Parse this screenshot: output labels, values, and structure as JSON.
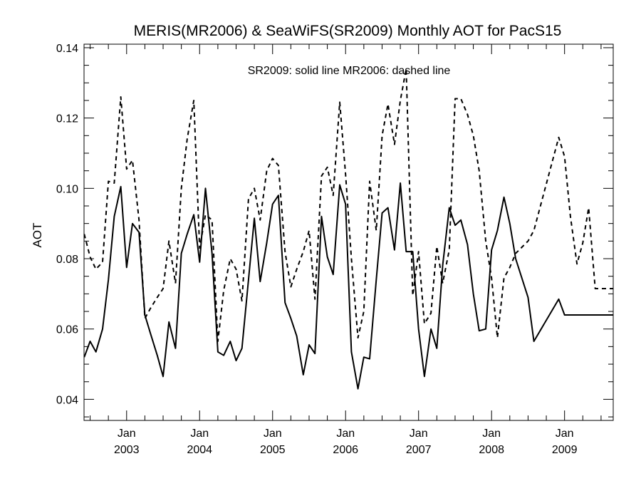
{
  "chart_data": {
    "type": "line",
    "title": "MERIS(MR2006) & SeaWiFS(SR2009) Monthly AOT for PacS15",
    "annotation": "SR2009: solid line   MR2006: dashed line",
    "xlabel": "",
    "ylabel": "AOT",
    "x_units": "decimal year",
    "xlim": [
      2002.4167,
      2009.6667
    ],
    "ylim": [
      0.034,
      0.141
    ],
    "x_ticks": [
      {
        "value": 2003.0,
        "line1": "Jan",
        "line2": "2003"
      },
      {
        "value": 2004.0,
        "line1": "Jan",
        "line2": "2004"
      },
      {
        "value": 2005.0,
        "line1": "Jan",
        "line2": "2005"
      },
      {
        "value": 2006.0,
        "line1": "Jan",
        "line2": "2006"
      },
      {
        "value": 2007.0,
        "line1": "Jan",
        "line2": "2007"
      },
      {
        "value": 2008.0,
        "line1": "Jan",
        "line2": "2008"
      },
      {
        "value": 2009.0,
        "line1": "Jan",
        "line2": "2009"
      }
    ],
    "y_ticks": [
      0.04,
      0.06,
      0.08,
      0.1,
      0.12,
      0.14
    ],
    "y_tick_labels": [
      "0.04",
      "0.06",
      "0.08",
      "0.10",
      "0.12",
      "0.14"
    ],
    "grid": false,
    "series": [
      {
        "style": "solid",
        "color": "#000000",
        "x": [
          2002.42,
          2002.5,
          2002.58,
          2002.67,
          2002.75,
          2002.83,
          2002.92,
          2003.0,
          2003.08,
          2003.17,
          2003.25,
          2003.33,
          2003.42,
          2003.5,
          2003.58,
          2003.67,
          2003.75,
          2003.83,
          2003.92,
          2004.0,
          2004.08,
          2004.17,
          2004.25,
          2004.33,
          2004.42,
          2004.5,
          2004.58,
          2004.67,
          2004.75,
          2004.83,
          2004.92,
          2005.0,
          2005.08,
          2005.17,
          2005.25,
          2005.33,
          2005.42,
          2005.5,
          2005.58,
          2005.67,
          2005.75,
          2005.83,
          2005.92,
          2006.0,
          2006.08,
          2006.17,
          2006.25,
          2006.33,
          2006.42,
          2006.5,
          2006.58,
          2006.67,
          2006.75,
          2006.83,
          2006.92,
          2007.0,
          2007.08,
          2007.17,
          2007.25,
          2007.33,
          2007.42,
          2007.5,
          2007.58,
          2007.67,
          2007.75,
          2007.83,
          2007.92,
          2008.0,
          2008.08,
          2008.17,
          2008.25,
          2008.33,
          2008.5,
          2008.58,
          2008.92,
          2009.0,
          2009.08,
          2009.17,
          2009.25,
          2009.33,
          2009.42,
          2009.5,
          2009.58,
          2009.67
        ],
        "y": [
          0.052,
          0.0565,
          0.0535,
          0.06,
          0.074,
          0.092,
          0.1005,
          0.0775,
          0.09,
          0.0875,
          0.064,
          0.0585,
          0.0525,
          0.0465,
          0.062,
          0.0545,
          0.0815,
          0.087,
          0.0925,
          0.079,
          0.1,
          0.0815,
          0.0535,
          0.0525,
          0.0565,
          0.051,
          0.0545,
          0.074,
          0.0915,
          0.0735,
          0.0845,
          0.0955,
          0.098,
          0.0675,
          0.063,
          0.058,
          0.047,
          0.0555,
          0.053,
          0.092,
          0.0805,
          0.0755,
          0.101,
          0.0955,
          0.0535,
          0.043,
          0.052,
          0.0515,
          0.074,
          0.093,
          0.0945,
          0.0825,
          0.1015,
          0.082,
          0.082,
          0.06,
          0.0465,
          0.06,
          0.0545,
          0.078,
          0.0945,
          0.0895,
          0.091,
          0.084,
          0.07,
          0.0595,
          0.06,
          0.0825,
          0.088,
          0.0975,
          0.09,
          0.08,
          0.069,
          0.0565,
          0.0685,
          0.064,
          0.064,
          0.064,
          0.064,
          0.064,
          0.064,
          0.064,
          0.064,
          0.064
        ]
      },
      {
        "style": "dashed",
        "color": "#000000",
        "x": [
          2002.42,
          2002.5,
          2002.58,
          2002.67,
          2002.75,
          2002.83,
          2002.92,
          2003.0,
          2003.08,
          2003.17,
          2003.25,
          2003.33,
          2003.42,
          2003.5,
          2003.58,
          2003.67,
          2003.75,
          2003.83,
          2003.92,
          2004.0,
          2004.08,
          2004.17,
          2004.25,
          2004.33,
          2004.42,
          2004.5,
          2004.58,
          2004.67,
          2004.75,
          2004.83,
          2004.92,
          2005.0,
          2005.08,
          2005.17,
          2005.25,
          2005.33,
          2005.42,
          2005.5,
          2005.58,
          2005.67,
          2005.75,
          2005.83,
          2005.92,
          2006.0,
          2006.08,
          2006.17,
          2006.25,
          2006.33,
          2006.42,
          2006.5,
          2006.58,
          2006.67,
          2006.75,
          2006.83,
          2006.92,
          2007.0,
          2007.08,
          2007.17,
          2007.25,
          2007.33,
          2007.42,
          2007.5,
          2007.58,
          2007.67,
          2007.75,
          2007.83,
          2007.92,
          2008.0,
          2008.08,
          2008.17,
          2008.25,
          2008.33,
          2008.5,
          2008.58,
          2008.92,
          2009.0,
          2009.08,
          2009.17,
          2009.25,
          2009.33,
          2009.42,
          2009.5,
          2009.58,
          2009.67
        ],
        "y": [
          0.087,
          0.0805,
          0.077,
          0.079,
          0.102,
          0.1015,
          0.126,
          0.1055,
          0.108,
          0.091,
          0.063,
          0.066,
          0.069,
          0.0715,
          0.085,
          0.073,
          0.1,
          0.114,
          0.125,
          0.083,
          0.0925,
          0.091,
          0.0565,
          0.071,
          0.08,
          0.077,
          0.068,
          0.097,
          0.1,
          0.091,
          0.105,
          0.1085,
          0.1065,
          0.082,
          0.072,
          0.077,
          0.082,
          0.088,
          0.0685,
          0.1035,
          0.106,
          0.098,
          0.1245,
          0.104,
          0.08,
          0.0575,
          0.065,
          0.102,
          0.088,
          0.115,
          0.124,
          0.1125,
          0.125,
          0.134,
          0.0695,
          0.082,
          0.0615,
          0.0645,
          0.0835,
          0.073,
          0.0825,
          0.1255,
          0.1255,
          0.121,
          0.115,
          0.105,
          0.085,
          0.0745,
          0.0575,
          0.0745,
          0.0775,
          0.0815,
          0.085,
          0.088,
          0.1145,
          0.109,
          0.092,
          0.0785,
          0.0845,
          0.0945,
          0.0715,
          0.0715,
          0.0715,
          0.0715
        ]
      }
    ]
  }
}
